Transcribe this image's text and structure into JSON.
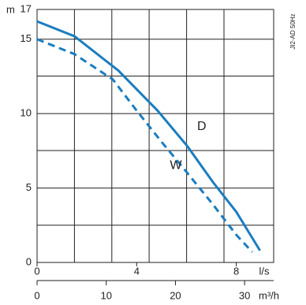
{
  "chart_data": {
    "type": "line",
    "y_label": "m",
    "x_label": "l/s",
    "x2_label": "m³/h",
    "side_note": "JI2-AD 50Hz",
    "xlim": [
      0,
      9.5
    ],
    "xticks": [
      0,
      4,
      8
    ],
    "x2lim": [
      0,
      34.2
    ],
    "x2ticks": [
      0,
      10,
      20,
      30
    ],
    "ylim": [
      0,
      17
    ],
    "yticks": [
      0,
      5,
      10,
      15,
      17
    ],
    "series": [
      {
        "name": "D",
        "color": "#1a7dc0",
        "dash": false,
        "x": [
          0,
          1.5,
          3.26,
          4.84,
          6.04,
          7.06,
          8.0,
          8.95
        ],
        "values": [
          16.2,
          15.2,
          12.9,
          10.2,
          7.8,
          5.4,
          3.4,
          0.8
        ]
      },
      {
        "name": "W",
        "color": "#1a7dc0",
        "dash": true,
        "x": [
          0,
          1.5,
          3.04,
          4.0,
          5.0,
          6.04,
          7.06,
          8.0,
          8.64
        ],
        "values": [
          15.0,
          14.0,
          12.3,
          10.2,
          8.1,
          6.0,
          3.9,
          1.85,
          0.7
        ]
      }
    ]
  }
}
